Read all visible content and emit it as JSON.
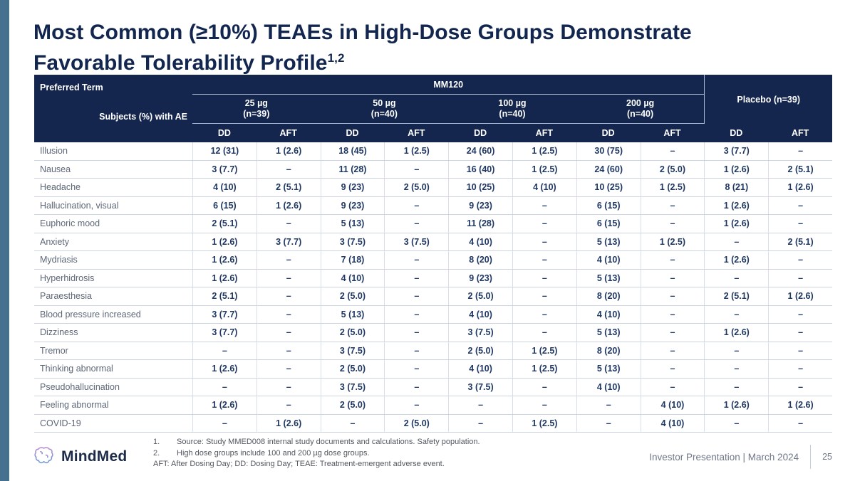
{
  "slide": {
    "title_line1": "Most Common (≥10%) TEAEs in High-Dose Groups Demonstrate",
    "title_line2": "Favorable Tolerability Profile",
    "title_superscript": "1,2"
  },
  "table": {
    "corner": {
      "top_label": "Preferred Term",
      "bottom_label": "Subjects (%) with AE"
    },
    "group_header": "MM120",
    "dose_groups": [
      {
        "label": "25 µg",
        "n": "(n=39)"
      },
      {
        "label": "50 µg",
        "n": "(n=40)"
      },
      {
        "label": "100 µg",
        "n": "(n=40)"
      },
      {
        "label": "200 µg",
        "n": "(n=40)"
      }
    ],
    "placebo_header": "Placebo (n=39)",
    "subcolumns": [
      "DD",
      "AFT"
    ],
    "rows": [
      {
        "term": "Illusion",
        "values": [
          "12 (31)",
          "1 (2.6)",
          "18 (45)",
          "1 (2.5)",
          "24 (60)",
          "1 (2.5)",
          "30 (75)",
          "–",
          "3 (7.7)",
          "–"
        ]
      },
      {
        "term": "Nausea",
        "values": [
          "3 (7.7)",
          "–",
          "11 (28)",
          "–",
          "16 (40)",
          "1 (2.5)",
          "24 (60)",
          "2 (5.0)",
          "1 (2.6)",
          "2 (5.1)"
        ]
      },
      {
        "term": "Headache",
        "values": [
          "4 (10)",
          "2 (5.1)",
          "9 (23)",
          "2 (5.0)",
          "10 (25)",
          "4 (10)",
          "10 (25)",
          "1 (2.5)",
          "8 (21)",
          "1 (2.6)"
        ]
      },
      {
        "term": "Hallucination, visual",
        "values": [
          "6 (15)",
          "1 (2.6)",
          "9 (23)",
          "–",
          "9 (23)",
          "–",
          "6 (15)",
          "–",
          "1 (2.6)",
          "–"
        ]
      },
      {
        "term": "Euphoric mood",
        "values": [
          "2 (5.1)",
          "–",
          "5 (13)",
          "–",
          "11 (28)",
          "–",
          "6 (15)",
          "–",
          "1 (2.6)",
          "–"
        ]
      },
      {
        "term": "Anxiety",
        "values": [
          "1 (2.6)",
          "3 (7.7)",
          "3 (7.5)",
          "3 (7.5)",
          "4 (10)",
          "–",
          "5 (13)",
          "1 (2.5)",
          "–",
          "2 (5.1)"
        ]
      },
      {
        "term": "Mydriasis",
        "values": [
          "1 (2.6)",
          "–",
          "7 (18)",
          "–",
          "8 (20)",
          "–",
          "4 (10)",
          "–",
          "1 (2.6)",
          "–"
        ]
      },
      {
        "term": "Hyperhidrosis",
        "values": [
          "1 (2.6)",
          "–",
          "4 (10)",
          "–",
          "9 (23)",
          "–",
          "5 (13)",
          "–",
          "–",
          "–"
        ]
      },
      {
        "term": "Paraesthesia",
        "values": [
          "2 (5.1)",
          "–",
          "2 (5.0)",
          "–",
          "2 (5.0)",
          "–",
          "8 (20)",
          "–",
          "2 (5.1)",
          "1 (2.6)"
        ]
      },
      {
        "term": "Blood pressure increased",
        "values": [
          "3 (7.7)",
          "–",
          "5 (13)",
          "–",
          "4 (10)",
          "–",
          "4 (10)",
          "–",
          "–",
          "–"
        ]
      },
      {
        "term": "Dizziness",
        "values": [
          "3 (7.7)",
          "–",
          "2 (5.0)",
          "–",
          "3 (7.5)",
          "–",
          "5 (13)",
          "–",
          "1 (2.6)",
          "–"
        ]
      },
      {
        "term": "Tremor",
        "values": [
          "–",
          "–",
          "3 (7.5)",
          "–",
          "2 (5.0)",
          "1 (2.5)",
          "8 (20)",
          "–",
          "–",
          "–"
        ]
      },
      {
        "term": "Thinking abnormal",
        "values": [
          "1 (2.6)",
          "–",
          "2 (5.0)",
          "–",
          "4 (10)",
          "1 (2.5)",
          "5 (13)",
          "–",
          "–",
          "–"
        ]
      },
      {
        "term": "Pseudohallucination",
        "values": [
          "–",
          "–",
          "3 (7.5)",
          "–",
          "3 (7.5)",
          "–",
          "4 (10)",
          "–",
          "–",
          "–"
        ]
      },
      {
        "term": "Feeling abnormal",
        "values": [
          "1 (2.6)",
          "–",
          "2 (5.0)",
          "–",
          "–",
          "–",
          "–",
          "4 (10)",
          "1 (2.6)",
          "1 (2.6)"
        ]
      },
      {
        "term": "COVID-19",
        "values": [
          "–",
          "1 (2.6)",
          "–",
          "2 (5.0)",
          "–",
          "1 (2.5)",
          "–",
          "4 (10)",
          "–",
          "–"
        ]
      }
    ]
  },
  "footer": {
    "logo_text": "MindMed",
    "footnotes": [
      {
        "num": "1.",
        "text": "Source: Study MMED008 internal study documents and calculations. Safety population."
      },
      {
        "num": "2.",
        "text": "High dose groups include 100 and 200 µg dose groups."
      }
    ],
    "abbreviations": "AFT: After Dosing Day; DD: Dosing Day; TEAE: Treatment-emergent adverse event.",
    "presentation_label": "Investor Presentation | March 2024",
    "page_number": "25"
  },
  "colors": {
    "header_navy": "#14264d",
    "accent_bar": "#45708f",
    "value_navy": "#203864",
    "term_gray": "#5d6777",
    "logo_gradient_top": "#b98fd0",
    "logo_gradient_bottom": "#6e9ad6"
  }
}
